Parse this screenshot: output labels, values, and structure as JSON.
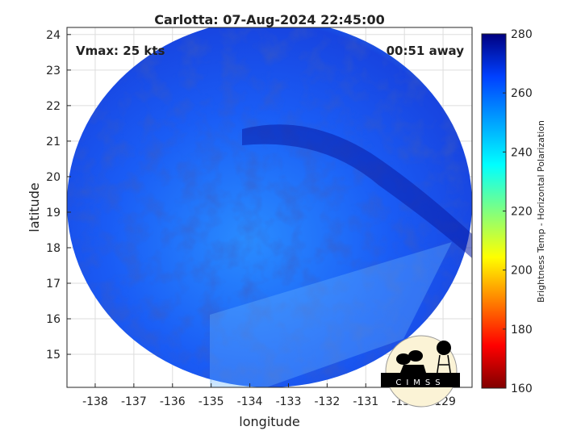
{
  "chart_data": {
    "type": "heatmap",
    "title": "Carlotta: 07-Aug-2024 22:45:00",
    "xlabel": "longitude",
    "ylabel": "latitude",
    "xlim": [
      -138.73,
      -128.25
    ],
    "ylim": [
      14.07,
      24.2
    ],
    "xticks": [
      -138,
      -137,
      -136,
      -135,
      -134,
      -133,
      -132,
      -131,
      -130,
      -129
    ],
    "yticks": [
      15,
      16,
      17,
      18,
      19,
      20,
      21,
      22,
      23,
      24
    ],
    "grid": true,
    "annotations": {
      "vmax": "Vmax: 25 kts",
      "away": "00:51 away"
    },
    "colorbar": {
      "label": "Brightness Temp - Horizontal Polarization",
      "range": [
        160,
        280
      ],
      "ticks": [
        160,
        180,
        200,
        220,
        240,
        260,
        280
      ],
      "colormap": "jet"
    },
    "swath": {
      "center_lon": -133.5,
      "center_lat": 19.5,
      "typical_value_range": [
        245,
        275
      ]
    }
  },
  "logo": {
    "text": "CIMSS"
  }
}
